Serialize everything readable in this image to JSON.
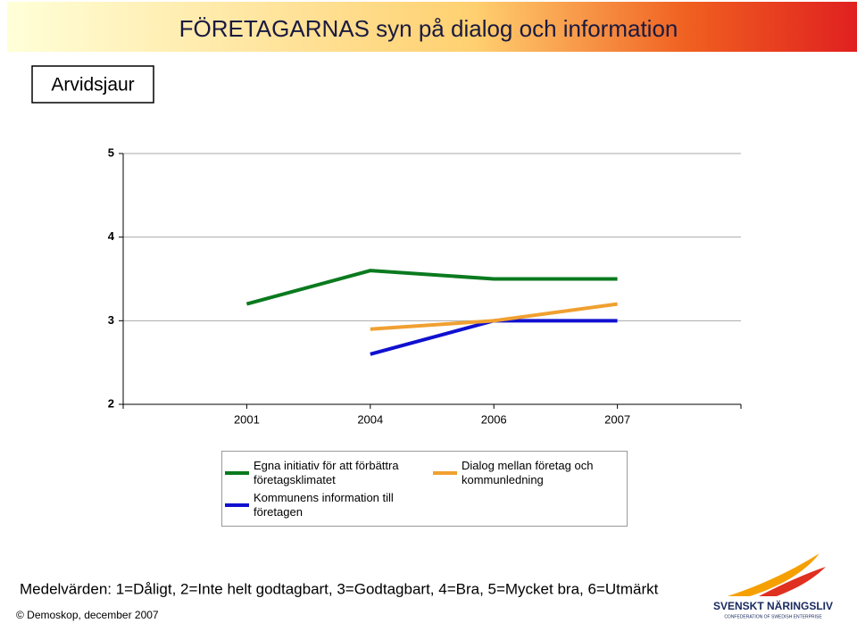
{
  "header": {
    "title": "FÖRETAGARNAS syn på dialog och information",
    "place": "Arvidsjaur"
  },
  "chart_data": {
    "type": "line",
    "categories": [
      "2001",
      "2004",
      "2006",
      "2007"
    ],
    "series": [
      {
        "name": "Egna initiativ för att förbättra företagsklimatet",
        "color": "#0a7a1e",
        "values": [
          3.2,
          3.6,
          3.5,
          3.5
        ]
      },
      {
        "name": "Kommunens information till företagen",
        "color": "#1010d0",
        "values": [
          null,
          2.6,
          3.0,
          3.0
        ]
      },
      {
        "name": "Dialog mellan företag och kommunledning",
        "color": "#f0a030",
        "values": [
          null,
          2.9,
          3.0,
          3.2
        ]
      }
    ],
    "ylim": [
      2,
      5
    ],
    "yticks": [
      2,
      3,
      4,
      5
    ],
    "grid": true
  },
  "footer": {
    "note": "Medelvärden: 1=Dåligt, 2=Inte helt godtagbart, 3=Godtagbart, 4=Bra, 5=Mycket bra, 6=Utmärkt",
    "source": "© Demoskop, december 2007",
    "logo": "SVENSKT NÄRINGSLIV",
    "logo_sub": "CONFEDERATION OF SWEDISH ENTERPRISE"
  }
}
